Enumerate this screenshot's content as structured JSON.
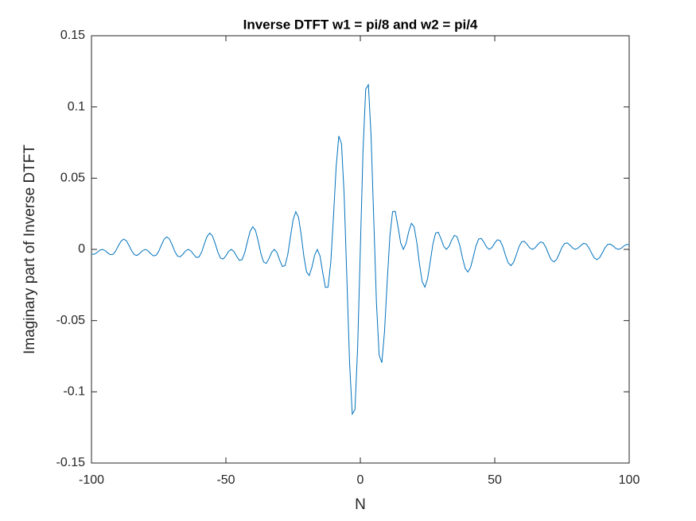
{
  "chart_data": {
    "type": "line",
    "title": "Inverse DTFT w1 = pi/8 and w2 = pi/4",
    "xlabel": "N",
    "ylabel": "Imaginary part of Inverse DTFT",
    "color": "#0072bd",
    "xlim": [
      -100,
      100
    ],
    "ylim": [
      -0.15,
      0.15
    ],
    "xticks": [
      -100,
      -50,
      0,
      50,
      100
    ],
    "yticks": [
      -0.15,
      -0.1,
      -0.05,
      0,
      0.05,
      0.1,
      0.15
    ],
    "x": [
      -100,
      -99,
      -98,
      -97,
      -96,
      -95,
      -94,
      -93,
      -92,
      -91,
      -90,
      -89,
      -88,
      -87,
      -86,
      -85,
      -84,
      -83,
      -82,
      -81,
      -80,
      -79,
      -78,
      -77,
      -76,
      -75,
      -74,
      -73,
      -72,
      -71,
      -70,
      -69,
      -68,
      -67,
      -66,
      -65,
      -64,
      -63,
      -62,
      -61,
      -60,
      -59,
      -58,
      -57,
      -56,
      -55,
      -54,
      -53,
      -52,
      -51,
      -50,
      -49,
      -48,
      -47,
      -46,
      -45,
      -44,
      -43,
      -42,
      -41,
      -40,
      -39,
      -38,
      -37,
      -36,
      -35,
      -34,
      -33,
      -32,
      -31,
      -30,
      -29,
      -28,
      -27,
      -26,
      -25,
      -24,
      -23,
      -22,
      -21,
      -20,
      -19,
      -18,
      -17,
      -16,
      -15,
      -14,
      -13,
      -12,
      -11,
      -10,
      -9,
      -8,
      -7,
      -6,
      -5,
      -4,
      -3,
      -2,
      -1,
      0,
      1,
      2,
      3,
      4,
      5,
      6,
      7,
      8,
      9,
      10,
      11,
      12,
      13,
      14,
      15,
      16,
      17,
      18,
      19,
      20,
      21,
      22,
      23,
      24,
      25,
      26,
      27,
      28,
      29,
      30,
      31,
      32,
      33,
      34,
      35,
      36,
      37,
      38,
      39,
      40,
      41,
      42,
      43,
      44,
      45,
      46,
      47,
      48,
      49,
      50,
      51,
      52,
      53,
      54,
      55,
      56,
      57,
      58,
      59,
      60,
      61,
      62,
      63,
      64,
      65,
      66,
      67,
      68,
      69,
      70,
      71,
      72,
      73,
      74,
      75,
      76,
      77,
      78,
      79,
      80,
      81,
      82,
      83,
      84,
      85,
      86,
      87,
      88,
      89,
      90,
      91,
      92,
      93,
      94,
      95,
      96,
      97,
      98,
      99,
      100
    ],
    "values": [
      -0.0032,
      -0.0035,
      -0.0023,
      -0.0007,
      0,
      -0.0007,
      -0.0024,
      -0.0037,
      -0.0035,
      -0.0011,
      0.0025,
      0.0058,
      0.0072,
      0.006,
      0.0026,
      -0.0012,
      -0.0038,
      -0.0042,
      -0.0027,
      -0.0009,
      0,
      -0.0009,
      -0.0029,
      -0.0045,
      -0.0042,
      -0.0014,
      0.003,
      0.0071,
      0.0088,
      0.0073,
      0.0032,
      -0.0015,
      -0.0047,
      -0.0052,
      -0.0034,
      -0.0011,
      0,
      -0.0011,
      -0.0036,
      -0.0057,
      -0.0053,
      -0.0018,
      0.0039,
      0.0091,
      0.0114,
      0.0094,
      0.0042,
      -0.0019,
      -0.0061,
      -0.0068,
      -0.0045,
      -0.0014,
      0,
      -0.0015,
      -0.0049,
      -0.0077,
      -0.0072,
      -0.0024,
      0.0054,
      0.0127,
      0.0159,
      0.0133,
      0.0059,
      -0.0028,
      -0.0088,
      -0.0099,
      -0.0066,
      -0.0021,
      0,
      -0.0022,
      -0.0075,
      -0.012,
      -0.0114,
      -0.0038,
      0.0087,
      0.0208,
      0.0265,
      0.0226,
      0.0102,
      -0.0049,
      -0.0159,
      -0.0183,
      -0.0125,
      -0.0041,
      0,
      -0.0046,
      -0.0161,
      -0.0267,
      -0.0265,
      -0.0094,
      0.0225,
      0.0577,
      0.0796,
      0.0742,
      0.0375,
      -0.0207,
      -0.0796,
      -0.1156,
      -0.1125,
      -0.069,
      0,
      0.069,
      0.1125,
      0.1156,
      0.0796,
      0.0207,
      -0.0375,
      -0.0742,
      -0.0796,
      -0.0577,
      -0.0225,
      0.0094,
      0.0265,
      0.0267,
      0.0161,
      0.0046,
      0,
      0.0041,
      0.0125,
      0.0183,
      0.0159,
      0.0049,
      -0.0102,
      -0.0226,
      -0.0265,
      -0.0208,
      -0.0087,
      0.0038,
      0.0114,
      0.012,
      0.0075,
      0.0022,
      0,
      0.0021,
      0.0066,
      0.0099,
      0.0088,
      0.0028,
      -0.0059,
      -0.0133,
      -0.0159,
      -0.0127,
      -0.0054,
      0.0024,
      0.0072,
      0.0077,
      0.0049,
      0.0015,
      0,
      0.0014,
      0.0045,
      0.0068,
      0.0061,
      0.0019,
      -0.0042,
      -0.0094,
      -0.0114,
      -0.0091,
      -0.0039,
      0.0018,
      0.0053,
      0.0057,
      0.0036,
      0.0011,
      0,
      0.0011,
      0.0034,
      0.0052,
      0.0047,
      0.0015,
      -0.0032,
      -0.0073,
      -0.0088,
      -0.0071,
      -0.003,
      0.0014,
      0.0042,
      0.0045,
      0.0029,
      0.0009,
      0,
      0.0009,
      0.0027,
      0.0042,
      0.0038,
      0.0012,
      -0.0026,
      -0.006,
      -0.0072,
      -0.0058,
      -0.0025,
      0.0011,
      0.0035,
      0.0037,
      0.0024,
      0.0007,
      0,
      0.0007,
      0.0023,
      0.0035,
      0.0032
    ]
  }
}
